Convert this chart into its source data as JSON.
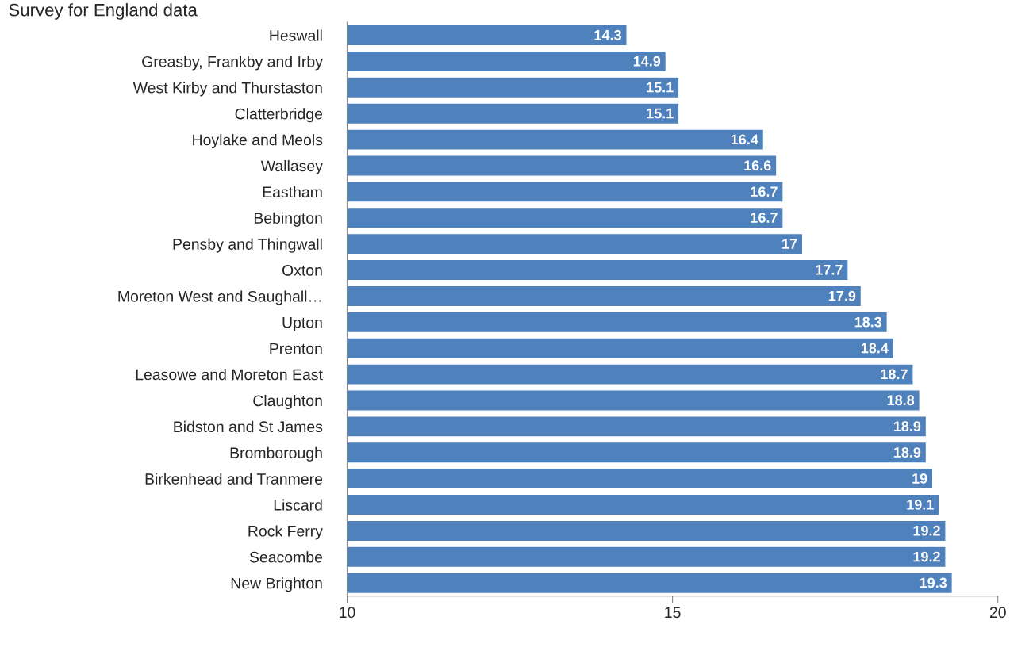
{
  "chart_data": {
    "type": "bar",
    "orientation": "horizontal",
    "subtitle": "Survey for England data",
    "categories": [
      "Heswall",
      "Greasby, Frankby and Irby",
      "West Kirby and Thurstaston",
      "Clatterbridge",
      "Hoylake and Meols",
      "Wallasey",
      "Eastham",
      "Bebington",
      "Pensby and Thingwall",
      "Oxton",
      "Moreton West and Saughall…",
      "Upton",
      "Prenton",
      "Leasowe and Moreton East",
      "Claughton",
      "Bidston and St James",
      "Bromborough",
      "Birkenhead and Tranmere",
      "Liscard",
      "Rock Ferry",
      "Seacombe",
      "New Brighton"
    ],
    "values": [
      14.3,
      14.9,
      15.1,
      15.1,
      16.4,
      16.6,
      16.7,
      16.7,
      17,
      17.7,
      17.9,
      18.3,
      18.4,
      18.7,
      18.8,
      18.9,
      18.9,
      19,
      19.1,
      19.2,
      19.2,
      19.3
    ],
    "color": "#4f81bd",
    "xlim": [
      10,
      20
    ],
    "xticks": [
      10,
      15,
      20
    ],
    "data_labels": true,
    "grid": false,
    "legend": false
  }
}
